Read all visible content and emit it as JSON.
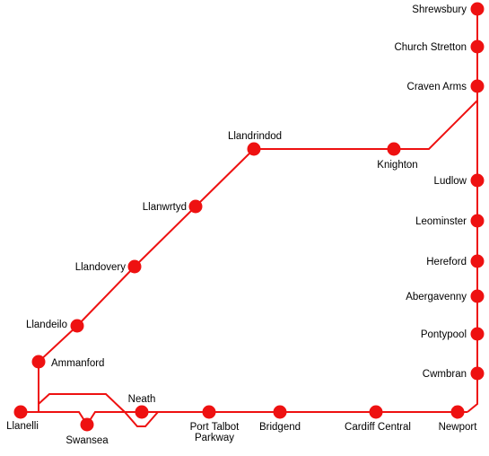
{
  "map": {
    "line_color": "#ee1111",
    "background": "#ffffff",
    "stations": {
      "shrewsbury": "Shrewsbury",
      "church_stretton": "Church Stretton",
      "craven_arms": "Craven Arms",
      "knighton": "Knighton",
      "llandrindod": "Llandrindod",
      "llanwrtyd": "Llanwrtyd",
      "llandovery": "Llandovery",
      "llandeilo": "Llandeilo",
      "ammanford": "Ammanford",
      "llanelli": "Llanelli",
      "swansea": "Swansea",
      "neath": "Neath",
      "port_talbot_line1": "Port Talbot",
      "port_talbot_line2": "Parkway",
      "bridgend": "Bridgend",
      "cardiff_central": "Cardiff Central",
      "newport": "Newport",
      "cwmbran": "Cwmbran",
      "pontypool": "Pontypool",
      "abergavenny": "Abergavenny",
      "hereford": "Hereford",
      "leominster": "Leominster",
      "ludlow": "Ludlow"
    }
  }
}
